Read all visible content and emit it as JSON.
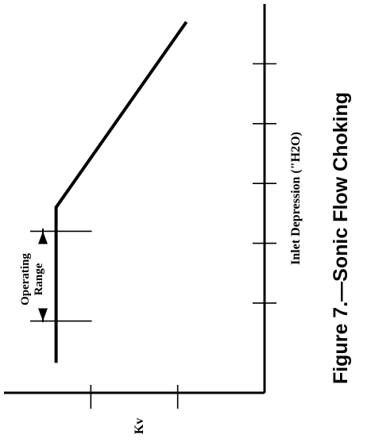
{
  "title": "Figure 7.—Sonic Flow Choking",
  "chart_data": {
    "type": "line",
    "title": "Figure 7.—Sonic Flow Choking",
    "xlabel": "Inlet Depression (\"H2O)",
    "ylabel": "Kv",
    "annotation": "Operating Range",
    "annotation_lines": [
      "Operating",
      "Range"
    ],
    "grid": false,
    "series": [
      {
        "points": [
          {
            "x": 0.0,
            "y": 0.6
          },
          {
            "x": 2.6,
            "y": 0.6
          },
          {
            "x": 5.7,
            "y": 2.1
          }
        ]
      }
    ],
    "operating_range": [
      0.7,
      2.2
    ],
    "xlim": [
      -0.5,
      6.0
    ],
    "ylim": [
      0.0,
      3.0
    ],
    "x_ticks": [
      1,
      2,
      3,
      4,
      5
    ],
    "y_ticks": [
      1,
      2
    ]
  },
  "colors": {
    "ink": "#000000",
    "background": "#ffffff"
  }
}
